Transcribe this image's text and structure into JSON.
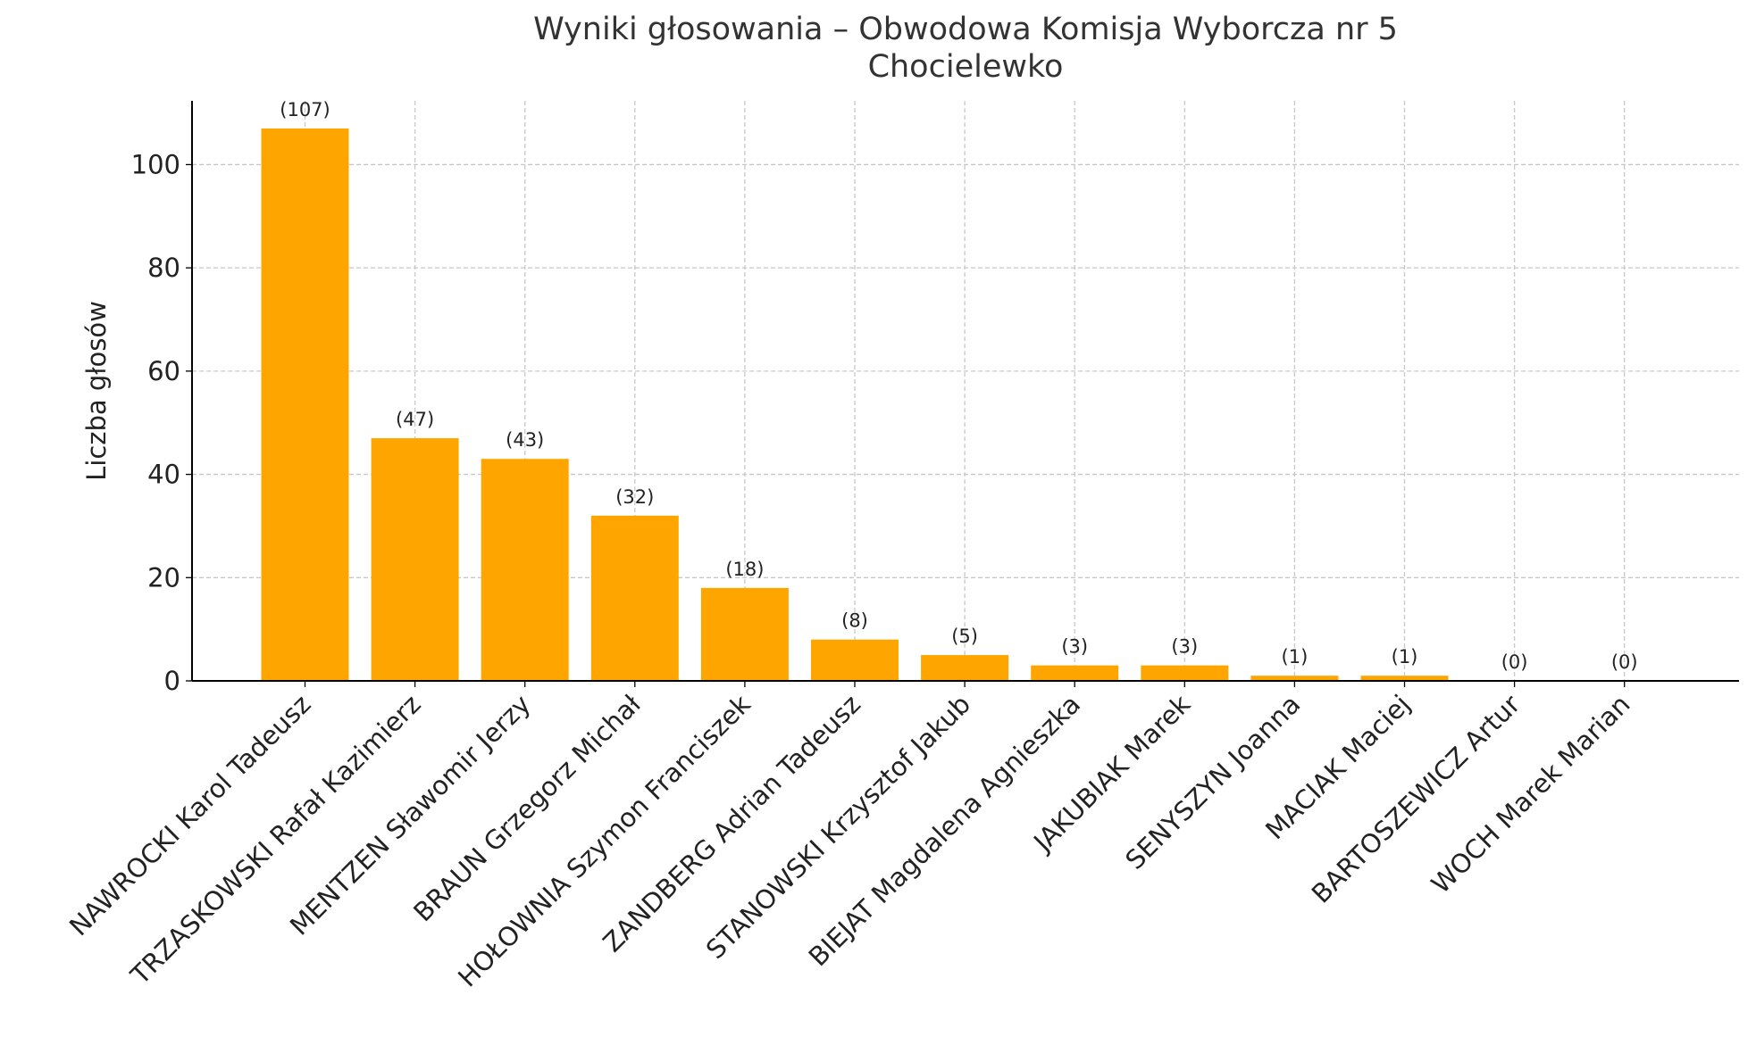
{
  "chart_data": {
    "type": "bar",
    "title": "Wyniki głosowania – Obwodowa Komisja Wyborcza nr 5\nChocielewko",
    "y_label": "Liczba głosów",
    "categories": [
      "NAWROCKI Karol Tadeusz",
      "TRZASKOWSKI Rafał Kazimierz",
      "MENTZEN Sławomir Jerzy",
      "BRAUN Grzegorz Michał",
      "HOŁOWNIA Szymon Franciszek",
      "ZANDBERG Adrian Tadeusz",
      "STANOWSKI Krzysztof Jakub",
      "BIEJAT Magdalena Agnieszka",
      "JAKUBIAK Marek",
      "SENYSZYN Joanna",
      "MACIAK Maciej",
      "BARTOSZEWICZ Artur",
      "WOCH Marek Marian"
    ],
    "values": [
      107,
      47,
      43,
      32,
      18,
      8,
      5,
      3,
      3,
      1,
      1,
      0,
      0
    ],
    "value_labels": [
      "(107)",
      "(47)",
      "(43)",
      "(32)",
      "(18)",
      "(8)",
      "(5)",
      "(3)",
      "(3)",
      "(1)",
      "(1)",
      "(0)",
      "(0)"
    ],
    "color": "#ffa500",
    "ylim": [
      0,
      112.35
    ],
    "yticks": [
      0,
      20,
      40,
      60,
      80,
      100
    ],
    "grid": true
  }
}
